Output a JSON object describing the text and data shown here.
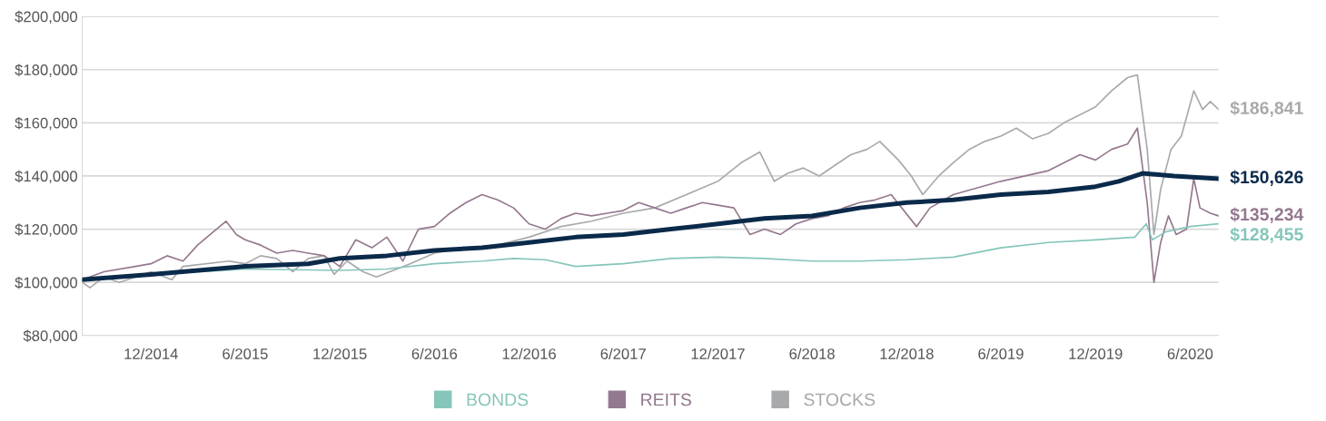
{
  "chart_data": {
    "type": "line",
    "xlim": [
      "2014-07-21",
      "2020-07-26"
    ],
    "ylim": [
      80000,
      200000
    ],
    "xticks": [
      {
        "value": "2014-12-01",
        "label": "12/2014"
      },
      {
        "value": "2015-06-01",
        "label": "6/2015"
      },
      {
        "value": "2015-12-01",
        "label": "12/2015"
      },
      {
        "value": "2016-06-01",
        "label": "6/2016"
      },
      {
        "value": "2016-12-01",
        "label": "12/2016"
      },
      {
        "value": "2017-06-01",
        "label": "6/2017"
      },
      {
        "value": "2017-12-01",
        "label": "12/2017"
      },
      {
        "value": "2018-06-01",
        "label": "6/2018"
      },
      {
        "value": "2018-12-01",
        "label": "12/2018"
      },
      {
        "value": "2019-06-01",
        "label": "6/2019"
      },
      {
        "value": "2019-12-01",
        "label": "12/2019"
      },
      {
        "value": "2020-06-01",
        "label": "6/2020"
      }
    ],
    "yticks": [
      {
        "value": 80000,
        "label": "$80,000"
      },
      {
        "value": 100000,
        "label": "$100,000"
      },
      {
        "value": 120000,
        "label": "$120,000"
      },
      {
        "value": 140000,
        "label": "$140,000"
      },
      {
        "value": 160000,
        "label": "$160,000"
      },
      {
        "value": 180000,
        "label": "$180,000"
      },
      {
        "value": 200000,
        "label": "$200,000"
      }
    ],
    "grid": "y",
    "legend": "bottom",
    "marker": "none",
    "line_style": "solid",
    "series": [
      {
        "name": "STOCKS",
        "color": "#a8a9ab",
        "x": [
          "2014-07-21",
          "2014-08-05",
          "2014-09-01",
          "2014-10-01",
          "2014-12-01",
          "2015-01-10",
          "2015-02-01",
          "2015-05-01",
          "2015-06-01",
          "2015-07-01",
          "2015-08-01",
          "2015-09-01",
          "2015-10-01",
          "2015-11-01",
          "2015-11-20",
          "2015-12-15",
          "2016-01-15",
          "2016-02-10",
          "2016-04-15",
          "2016-06-01",
          "2016-08-01",
          "2016-10-01",
          "2016-12-01",
          "2017-02-01",
          "2017-04-01",
          "2017-06-01",
          "2017-08-01",
          "2017-10-01",
          "2017-12-01",
          "2018-01-15",
          "2018-02-20",
          "2018-03-20",
          "2018-04-15",
          "2018-05-15",
          "2018-06-15",
          "2018-07-15",
          "2018-08-15",
          "2018-09-15",
          "2018-10-10",
          "2018-11-15",
          "2018-12-10",
          "2019-01-01",
          "2019-02-01",
          "2019-03-01",
          "2019-04-01",
          "2019-05-01",
          "2019-06-01",
          "2019-07-01",
          "2019-08-01",
          "2019-09-01",
          "2019-10-01",
          "2019-11-01",
          "2019-12-01",
          "2020-01-01",
          "2020-02-01",
          "2020-02-20",
          "2020-03-10",
          "2020-03-23",
          "2020-04-05",
          "2020-04-25",
          "2020-05-15",
          "2020-06-08",
          "2020-06-25",
          "2020-07-10",
          "2020-07-26"
        ],
        "values": [
          100000,
          98000,
          102000,
          100000,
          104000,
          101000,
          106000,
          108000,
          107000,
          110000,
          109000,
          104000,
          109000,
          110000,
          103000,
          108000,
          104000,
          102000,
          107000,
          111000,
          113000,
          114000,
          117000,
          121000,
          123000,
          126000,
          128000,
          133000,
          138000,
          145000,
          149000,
          138000,
          141000,
          143000,
          140000,
          144000,
          148000,
          150000,
          153000,
          146000,
          140000,
          133000,
          140000,
          145000,
          150000,
          153000,
          155000,
          158000,
          154000,
          156000,
          160000,
          163000,
          166000,
          172000,
          177000,
          178000,
          150000,
          118000,
          135000,
          150000,
          155000,
          172000,
          165000,
          168000,
          165000
        ]
      },
      {
        "name": null,
        "color": "#0b2a4a",
        "x": [
          "2014-07-21",
          "2014-12-01",
          "2015-06-01",
          "2015-10-01",
          "2015-12-01",
          "2016-03-01",
          "2016-06-01",
          "2016-09-01",
          "2016-12-01",
          "2017-03-01",
          "2017-06-01",
          "2017-09-01",
          "2017-12-01",
          "2018-03-01",
          "2018-06-01",
          "2018-09-01",
          "2018-12-01",
          "2019-03-01",
          "2019-06-01",
          "2019-09-01",
          "2019-12-01",
          "2020-01-15",
          "2020-03-01",
          "2020-05-01",
          "2020-07-26"
        ],
        "values": [
          101000,
          103000,
          106000,
          107000,
          109000,
          110000,
          112000,
          113000,
          115000,
          117000,
          118000,
          120000,
          122000,
          124000,
          125000,
          128000,
          130000,
          131000,
          133000,
          134000,
          136000,
          138000,
          141000,
          140000,
          139000
        ]
      },
      {
        "name": "REITS",
        "color": "#94788f",
        "x": [
          "2014-07-21",
          "2014-09-01",
          "2014-11-01",
          "2014-12-01",
          "2015-01-01",
          "2015-02-01",
          "2015-03-01",
          "2015-04-25",
          "2015-05-15",
          "2015-06-01",
          "2015-07-01",
          "2015-08-01",
          "2015-09-01",
          "2015-10-01",
          "2015-11-01",
          "2015-12-01",
          "2016-01-01",
          "2016-02-01",
          "2016-03-01",
          "2016-04-01",
          "2016-05-01",
          "2016-06-01",
          "2016-07-01",
          "2016-08-01",
          "2016-09-01",
          "2016-10-01",
          "2016-11-01",
          "2016-12-01",
          "2017-01-01",
          "2017-02-01",
          "2017-03-01",
          "2017-04-01",
          "2017-05-01",
          "2017-06-01",
          "2017-07-01",
          "2017-08-01",
          "2017-09-01",
          "2017-10-01",
          "2017-11-01",
          "2017-12-01",
          "2018-01-01",
          "2018-02-01",
          "2018-03-01",
          "2018-04-01",
          "2018-05-01",
          "2018-06-01",
          "2018-07-01",
          "2018-08-01",
          "2018-09-01",
          "2018-10-01",
          "2018-11-01",
          "2018-12-20",
          "2019-01-15",
          "2019-03-01",
          "2019-06-01",
          "2019-09-01",
          "2019-11-01",
          "2019-12-01",
          "2020-01-01",
          "2020-02-01",
          "2020-02-20",
          "2020-03-10",
          "2020-03-23",
          "2020-04-05",
          "2020-04-20",
          "2020-05-05",
          "2020-05-25",
          "2020-06-08",
          "2020-06-20",
          "2020-07-10",
          "2020-07-26"
        ],
        "values": [
          101000,
          104000,
          106000,
          107000,
          110000,
          108000,
          114000,
          123000,
          118000,
          116000,
          114000,
          111000,
          112000,
          111000,
          110000,
          106000,
          116000,
          113000,
          117000,
          108000,
          120000,
          121000,
          126000,
          130000,
          133000,
          131000,
          128000,
          122000,
          120000,
          124000,
          126000,
          125000,
          126000,
          127000,
          130000,
          128000,
          126000,
          128000,
          130000,
          129000,
          128000,
          118000,
          120000,
          118000,
          122000,
          124000,
          125000,
          128000,
          130000,
          131000,
          133000,
          121000,
          128000,
          133000,
          138000,
          142000,
          148000,
          146000,
          150000,
          152000,
          158000,
          130000,
          100000,
          115000,
          125000,
          118000,
          120000,
          139000,
          128000,
          126000,
          125000
        ]
      },
      {
        "name": "BONDS",
        "color": "#86c5ba",
        "x": [
          "2014-07-21",
          "2014-12-01",
          "2015-06-01",
          "2015-12-01",
          "2016-03-01",
          "2016-06-01",
          "2016-09-01",
          "2016-11-01",
          "2017-01-01",
          "2017-03-01",
          "2017-06-01",
          "2017-09-01",
          "2017-12-01",
          "2018-03-01",
          "2018-06-01",
          "2018-09-01",
          "2018-12-01",
          "2019-03-01",
          "2019-06-01",
          "2019-09-01",
          "2019-12-01",
          "2020-02-15",
          "2020-03-08",
          "2020-03-20",
          "2020-04-15",
          "2020-06-01",
          "2020-07-26"
        ],
        "values": [
          101000,
          103000,
          105000,
          104500,
          105000,
          107000,
          108000,
          109000,
          108500,
          106000,
          107000,
          109000,
          109500,
          109000,
          108000,
          108000,
          108500,
          109500,
          113000,
          115000,
          116000,
          117000,
          122000,
          116000,
          119000,
          121000,
          122000
        ]
      }
    ],
    "annotations": [
      "$186,841",
      "$150,626",
      "$135,234",
      "$128,455"
    ]
  }
}
